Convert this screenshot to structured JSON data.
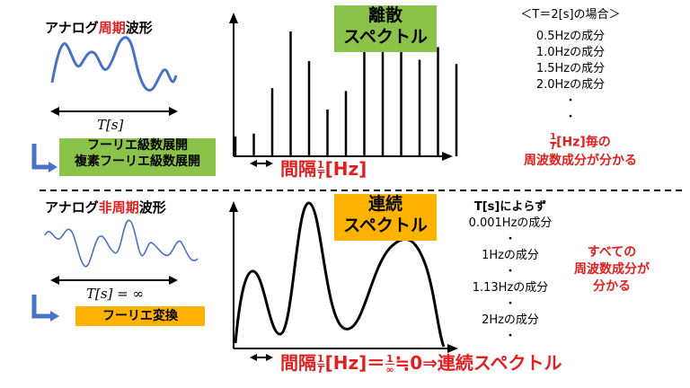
{
  "top": {
    "wave_title_pre": "アナログ",
    "wave_title_red": "周期",
    "wave_title_post": "波形",
    "period_label": "T[s]",
    "transform_line1": "フーリエ級数展開",
    "transform_line2": "複素フーリエ級数展開",
    "spectrum_line1": "離散",
    "spectrum_line2": "スペクトル",
    "interval_label": "間隔",
    "interval_frac_num": "1",
    "interval_frac_den": "T",
    "interval_unit": "[Hz]",
    "case_header": "＜T＝2[s]の場合＞",
    "components": [
      "0.5Hzの成分",
      "1.0Hzの成分",
      "1.5Hzの成分",
      "2.0Hzの成分"
    ],
    "dots": [
      "・",
      "・"
    ],
    "result_frac_num": "1",
    "result_frac_den": "T",
    "result_line1_rest": "[Hz]毎の",
    "result_line2": "周波数成分が分かる"
  },
  "bottom": {
    "wave_title_pre": "アナログ",
    "wave_title_red": "非周期",
    "wave_title_post": "波形",
    "period_label": "T[s] = ∞",
    "transform_label": "フーリエ変換",
    "spectrum_line1": "連続",
    "spectrum_line2": "スペクトル",
    "interval_label": "間隔",
    "interval_frac_num": "1",
    "interval_frac_den": "T",
    "interval_mid": "[Hz]＝",
    "inf_num": "1",
    "inf_den": "∞",
    "interval_end": "≒0⇒連続スペクトル",
    "independent_note": "T[s]によらず",
    "components": [
      "0.001Hzの成分",
      "1Hzの成分",
      "1.13Hzの成分",
      "2Hzの成分"
    ],
    "dot": "・",
    "all_line1": "すべての",
    "all_line2": "周波数成分が",
    "all_line3": "分かる"
  },
  "discrete_spectrum": {
    "type": "bar",
    "magnitudes": [
      0.14,
      0.16,
      0.48,
      0.88,
      0.67,
      0.33,
      0.46,
      0.82,
      0.78,
      0.89,
      0.68,
      0.77,
      0.65
    ]
  },
  "colors": {
    "wave": "#4a72c4",
    "accent_red": "#e02020",
    "green": "#8bc34a",
    "orange": "#ffb300",
    "arrow_blue": "#4a72c4"
  }
}
